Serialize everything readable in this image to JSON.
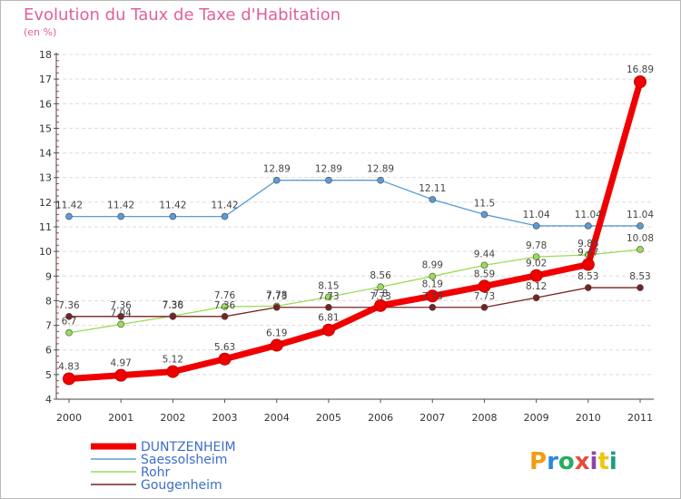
{
  "header": {
    "title": "Evolution du Taux de Taxe d'Habitation",
    "subtitle": "(en %)"
  },
  "logo": {
    "text": "Proxiti"
  },
  "chart_data": {
    "type": "line",
    "title": "Evolution du Taux de Taxe d'Habitation",
    "subtitle": "(en %)",
    "xlabel": "",
    "ylabel": "",
    "x": [
      "2000",
      "2001",
      "2002",
      "2003",
      "2004",
      "2005",
      "2006",
      "2007",
      "2008",
      "2009",
      "2010",
      "2011"
    ],
    "ylim": [
      4,
      18
    ],
    "yticks": [
      "4",
      "5",
      "6",
      "7",
      "8",
      "9",
      "10",
      "11",
      "12",
      "13",
      "14",
      "15",
      "16",
      "17",
      "18"
    ],
    "grid": "horizontal dashed",
    "legend_position": "bottom",
    "series": [
      {
        "name": "DUNTZENHEIM",
        "color": "#f00000",
        "values": [
          4.83,
          4.97,
          5.12,
          5.63,
          6.19,
          6.81,
          7.8,
          8.19,
          8.59,
          9.02,
          9.47,
          16.89
        ],
        "labels": [
          "4.83",
          "4.97",
          "5.12",
          "5.63",
          "6.19",
          "6.81",
          "7.8",
          "8.19",
          "8.59",
          "9.02",
          "9.47",
          "16.89"
        ]
      },
      {
        "name": "Saessolsheim",
        "color": "#5b9bd5",
        "values": [
          11.42,
          11.42,
          11.42,
          11.42,
          12.89,
          12.89,
          12.89,
          12.11,
          11.5,
          11.04,
          11.04,
          11.04
        ],
        "labels": [
          "11.42",
          "11.42",
          "11.42",
          "11.42",
          "12.89",
          "12.89",
          "12.89",
          "12.11",
          "11.5",
          "11.04",
          "11.04",
          "11.04"
        ]
      },
      {
        "name": "Rohr",
        "color": "#99dd55",
        "values": [
          6.7,
          7.04,
          7.38,
          7.76,
          7.78,
          8.15,
          8.56,
          8.99,
          9.44,
          9.78,
          9.86,
          10.08
        ],
        "labels": [
          "6.7",
          "7.04",
          "7.38",
          "7.76",
          "7.78",
          "8.15",
          "8.56",
          "8.99",
          "9.44",
          "9.78",
          "9.86",
          "10.08"
        ]
      },
      {
        "name": "Gougenheim",
        "color": "#772222",
        "values": [
          7.36,
          7.36,
          7.36,
          7.36,
          7.73,
          7.73,
          7.73,
          7.73,
          7.73,
          8.12,
          8.53,
          8.53
        ],
        "labels": [
          "7.36",
          "7.36",
          "7.36",
          "7.36",
          "7.73",
          "7.73",
          "7.73",
          "7.73",
          "7.73",
          "8.12",
          "8.53",
          "8.53"
        ]
      }
    ]
  }
}
